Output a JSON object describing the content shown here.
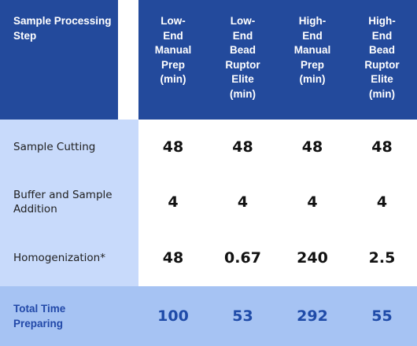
{
  "table": {
    "header": {
      "step_col": "Sample Processing Step",
      "columns": [
        "Low-\nEnd\nManual\nPrep\n(min)",
        "Low-\nEnd\nBead\nRuptor\nElite\n(min)",
        "High-\nEnd\nManual\nPrep\n(min)",
        "High-\nEnd\nBead\nRuptor\nElite\n(min)"
      ]
    },
    "rows": [
      {
        "label": "Sample Cutting",
        "values": [
          "48",
          "48",
          "48",
          "48"
        ]
      },
      {
        "label": "Buffer and Sample Addition",
        "values": [
          "4",
          "4",
          "4",
          "4"
        ]
      },
      {
        "label": "Homogenization*",
        "values": [
          "48",
          "0.67",
          "240",
          "2.5"
        ]
      }
    ],
    "total": {
      "label": "Total Time Preparing",
      "values": [
        "100",
        "53",
        "292",
        "55"
      ]
    }
  },
  "colors": {
    "header_bg": "#234a9c",
    "label_bg": "#c8dafb",
    "total_bg": "#a6c3f3",
    "total_text": "#1f4ba8"
  }
}
